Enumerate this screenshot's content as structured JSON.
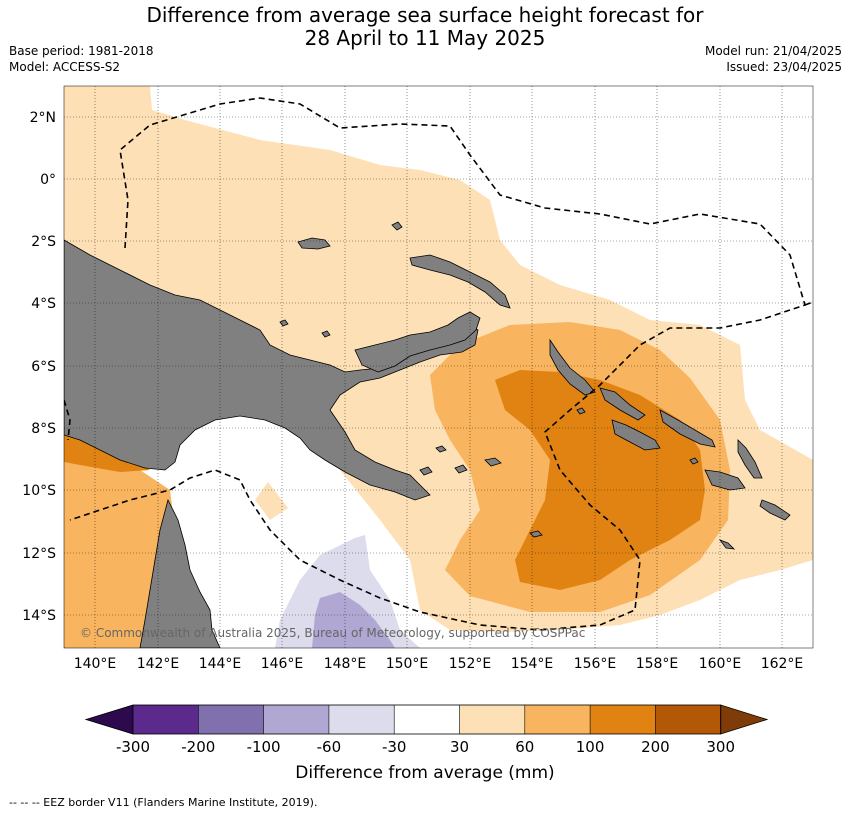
{
  "title_line1": "Difference from average sea surface height forecast for",
  "title_line2": "28 April to 11 May 2025",
  "base_period": "Base period: 1981-2018",
  "model": "Model: ACCESS-S2",
  "model_run": "Model run: 21/04/2025",
  "issued": "Issued: 23/04/2025",
  "lat_labels": [
    "2°N",
    "0°",
    "2°S",
    "4°S",
    "6°S",
    "8°S",
    "10°S",
    "12°S",
    "14°S"
  ],
  "lon_labels": [
    "140°E",
    "142°E",
    "144°E",
    "146°E",
    "148°E",
    "150°E",
    "152°E",
    "154°E",
    "156°E",
    "158°E",
    "160°E",
    "162°E"
  ],
  "copyright": "© Commonwealth of Australia 2025, Bureau of Meteorology, supported by COSPPac",
  "colorbar": {
    "label": "Difference from average (mm)",
    "ticks": [
      "-300",
      "-200",
      "-100",
      "-60",
      "-30",
      "30",
      "60",
      "100",
      "200",
      "300"
    ],
    "colors": [
      "#2d0a4e",
      "#5b2a8c",
      "#8070ad",
      "#b0a8d3",
      "#dcdcec",
      "#ffffff",
      "#fde0b5",
      "#f8b45e",
      "#e08313",
      "#b35807",
      "#7f3b08"
    ]
  },
  "footnote": "--  --  -- EEZ border V11 (Flanders Marine Institute, 2019).",
  "colors": {
    "land": "#808080",
    "eez": "#000000"
  }
}
